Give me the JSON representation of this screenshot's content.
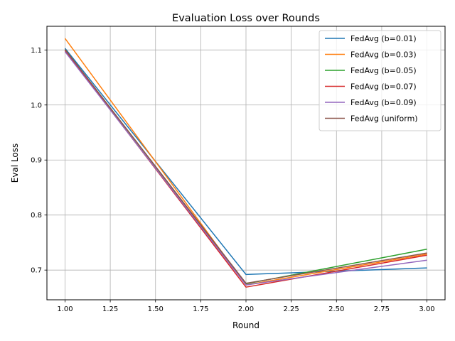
{
  "chart_data": {
    "type": "line",
    "title": "Evaluation Loss over Rounds",
    "xlabel": "Round",
    "ylabel": "Eval Loss",
    "xlim": [
      0.9,
      3.1
    ],
    "ylim": [
      0.646,
      1.143
    ],
    "xticks": [
      1.0,
      1.25,
      1.5,
      1.75,
      2.0,
      2.25,
      2.5,
      2.75,
      3.0
    ],
    "xtick_labels": [
      "1.00",
      "1.25",
      "1.50",
      "1.75",
      "2.00",
      "2.25",
      "2.50",
      "2.75",
      "3.00"
    ],
    "yticks": [
      0.7,
      0.8,
      0.9,
      1.0,
      1.1
    ],
    "ytick_labels": [
      "0.7",
      "0.8",
      "0.9",
      "1.0",
      "1.1"
    ],
    "grid": true,
    "legend_position": "top-right",
    "x": [
      1,
      2,
      3
    ],
    "series": [
      {
        "name": "FedAvg (b=0.01)",
        "color": "#1f77b4",
        "values": [
          1.103,
          0.692,
          0.704
        ]
      },
      {
        "name": "FedAvg (b=0.03)",
        "color": "#ff7f0e",
        "values": [
          1.121,
          0.673,
          0.729
        ]
      },
      {
        "name": "FedAvg (b=0.05)",
        "color": "#2ca02c",
        "values": [
          1.101,
          0.675,
          0.738
        ]
      },
      {
        "name": "FedAvg (b=0.07)",
        "color": "#d62728",
        "values": [
          1.099,
          0.669,
          0.727
        ]
      },
      {
        "name": "FedAvg (b=0.09)",
        "color": "#9467bd",
        "values": [
          1.097,
          0.673,
          0.718
        ]
      },
      {
        "name": "FedAvg (uniform)",
        "color": "#8c564b",
        "values": [
          1.101,
          0.676,
          0.731
        ]
      }
    ]
  }
}
